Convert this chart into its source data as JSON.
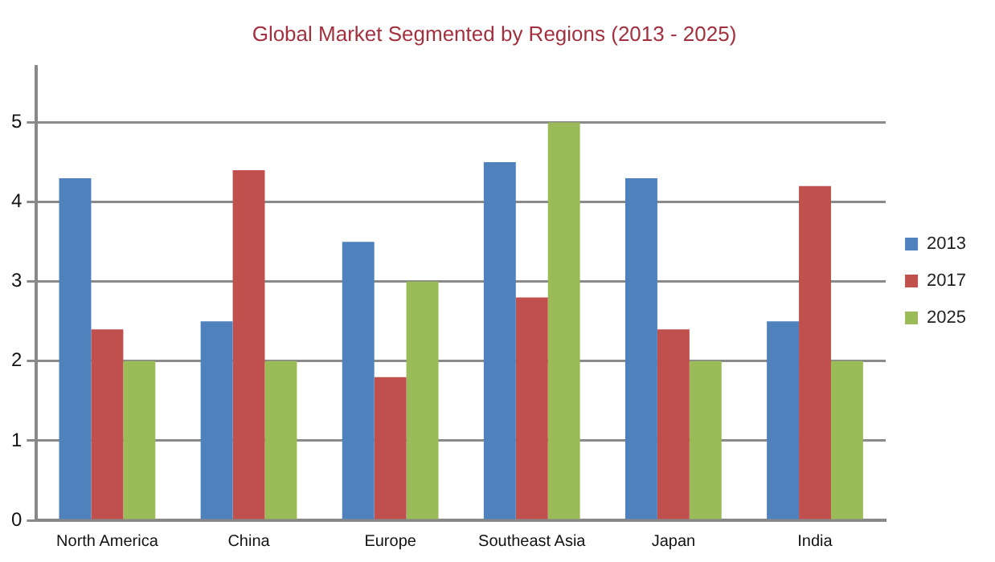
{
  "chart_data": {
    "type": "bar",
    "title": "Global Market Segmented by Regions (2013 - 2025)",
    "categories": [
      "North America",
      "China",
      "Europe",
      "Southeast Asia",
      "Japan",
      "India"
    ],
    "series": [
      {
        "name": "2013",
        "color": "#4f81bd",
        "values": [
          4.3,
          2.5,
          3.5,
          4.5,
          4.3,
          2.5
        ]
      },
      {
        "name": "2017",
        "color": "#c0504d",
        "values": [
          2.4,
          4.4,
          1.8,
          2.8,
          2.4,
          4.2
        ]
      },
      {
        "name": "2025",
        "color": "#9bbb59",
        "values": [
          2,
          2,
          3,
          5,
          2,
          2
        ]
      }
    ],
    "ylim": [
      0,
      5.7
    ],
    "yticks": [
      0,
      1,
      2,
      3,
      4,
      5
    ],
    "grid": "y",
    "legend": "right"
  }
}
